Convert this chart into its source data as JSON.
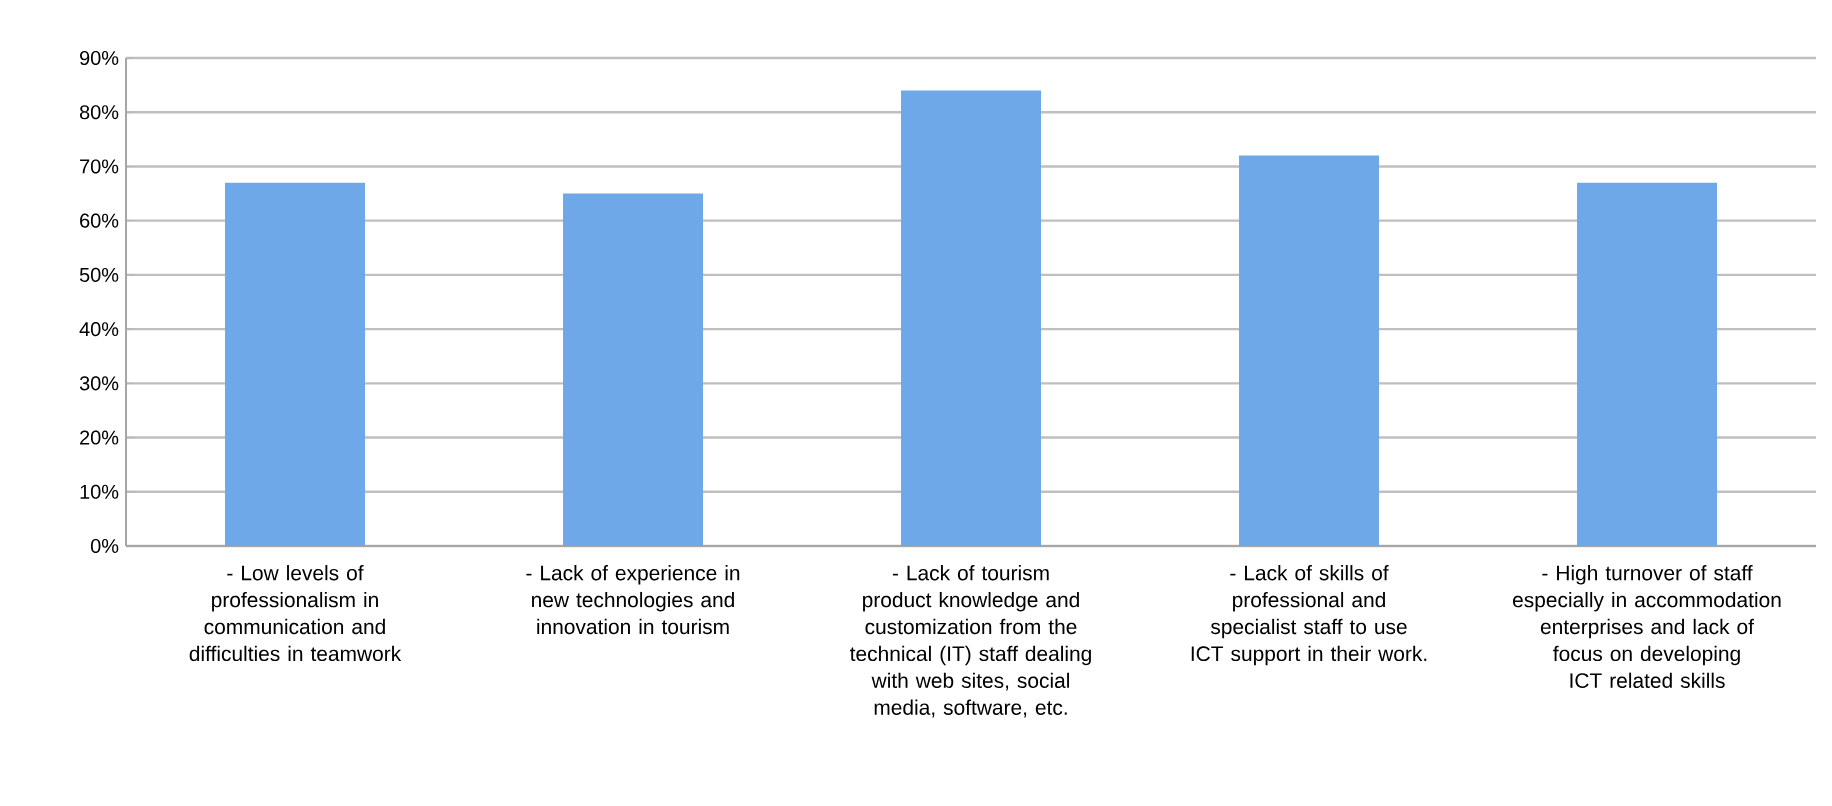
{
  "chart_data": {
    "type": "bar",
    "categories": [
      "- Low levels of professionalism in communication and difficulties in teamwork",
      "- Lack of experience in new technologies and innovation in tourism",
      "- Lack of tourism product knowledge and customization from the technical (IT) staff dealing with web sites, social media, software, etc.",
      "- Lack of skills of professional and specialist staff to use ICT support in their work.",
      "- High turnover of staff especially in accommodation enterprises and lack of focus on developing ICT related skills"
    ],
    "values": [
      67,
      65,
      84,
      72,
      67
    ],
    "color": "#6fa8e8",
    "ylim": [
      0,
      90
    ],
    "yticks": [
      {
        "value": 0,
        "label": "0%"
      },
      {
        "value": 10,
        "label": "10%"
      },
      {
        "value": 20,
        "label": "20%"
      },
      {
        "value": 30,
        "label": "30%"
      },
      {
        "value": 40,
        "label": "40%"
      },
      {
        "value": 50,
        "label": "50%"
      },
      {
        "value": 60,
        "label": "60%"
      },
      {
        "value": 70,
        "label": "70%"
      },
      {
        "value": 80,
        "label": "80%"
      },
      {
        "value": 90,
        "label": "90%"
      }
    ],
    "grid": "y"
  }
}
